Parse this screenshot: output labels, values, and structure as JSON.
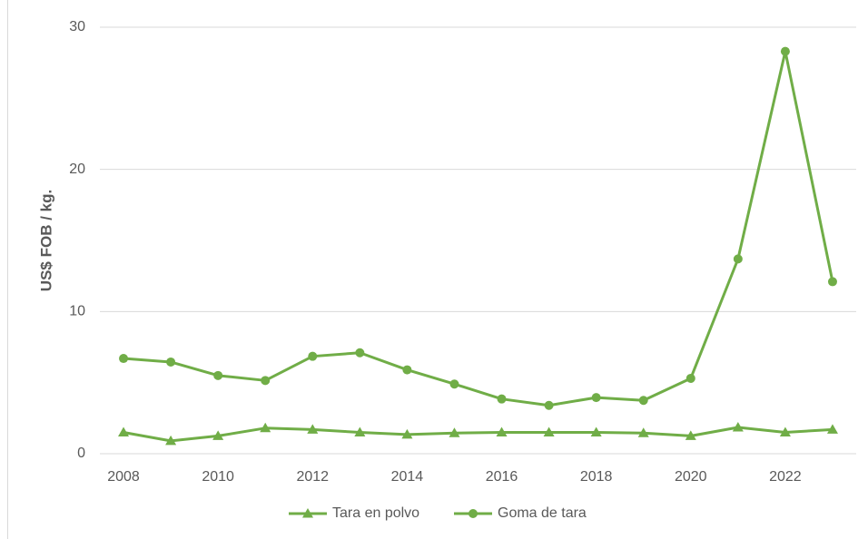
{
  "chart_data": {
    "type": "line",
    "y_label": "US$ FOB / kg.",
    "x": [
      2008,
      2009,
      2010,
      2011,
      2012,
      2013,
      2014,
      2015,
      2016,
      2017,
      2018,
      2019,
      2020,
      2021,
      2022,
      2023
    ],
    "series": [
      {
        "name": "Tara en polvo",
        "color": "#70ad47",
        "marker": "triangle",
        "values": [
          1.5,
          0.9,
          1.25,
          1.8,
          1.7,
          1.5,
          1.35,
          1.45,
          1.5,
          1.5,
          1.5,
          1.45,
          1.25,
          1.85,
          1.5,
          1.7
        ]
      },
      {
        "name": "Goma de tara",
        "color": "#70ad47",
        "marker": "circle",
        "values": [
          6.7,
          6.45,
          5.5,
          5.15,
          6.85,
          7.1,
          5.9,
          4.9,
          3.85,
          3.4,
          3.95,
          3.75,
          5.3,
          13.7,
          28.3,
          12.1
        ]
      }
    ],
    "xlim": [
      2007.5,
      2023.5
    ],
    "xticks": [
      2008,
      2010,
      2012,
      2014,
      2016,
      2018,
      2020,
      2022
    ],
    "ylim": [
      0,
      30
    ],
    "yticks": [
      0,
      10,
      20,
      30
    ],
    "grid": true,
    "legend": "bottom"
  }
}
